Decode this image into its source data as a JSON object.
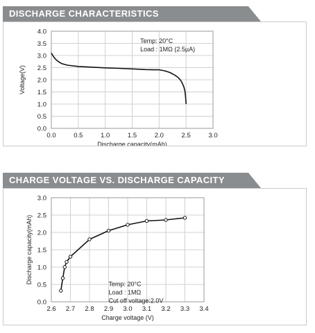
{
  "chart_data": [
    {
      "type": "line",
      "title": "DISCHARGE CHARACTERISTICS",
      "xlabel": "Discharge capacity(mAh)",
      "ylabel": "Voltage(V)",
      "xlim": [
        0.0,
        3.0
      ],
      "ylim": [
        0.0,
        4.0
      ],
      "xticks": [
        "0.0",
        "0.5",
        "1.0",
        "1.5",
        "2.0",
        "2.5",
        "3.0"
      ],
      "yticks": [
        "0.0",
        "0.5",
        "1.0",
        "1.5",
        "2.0",
        "2.5",
        "3.0",
        "3.5",
        "4.0"
      ],
      "grid": true,
      "annotation": [
        "Temp: 20°C",
        "Load : 1MΩ (2.5µA)"
      ],
      "series": [
        {
          "x": [
            0.0,
            0.05,
            0.1,
            0.15,
            0.2,
            0.3,
            0.5,
            0.75,
            1.0,
            1.25,
            1.5,
            1.75,
            1.9,
            2.0,
            2.1,
            2.2,
            2.3,
            2.35,
            2.4,
            2.43,
            2.46,
            2.48,
            2.49,
            2.5
          ],
          "y": [
            3.1,
            2.92,
            2.8,
            2.72,
            2.66,
            2.6,
            2.55,
            2.52,
            2.49,
            2.47,
            2.45,
            2.42,
            2.41,
            2.41,
            2.37,
            2.3,
            2.18,
            2.1,
            1.98,
            1.86,
            1.7,
            1.52,
            1.32,
            1.0
          ]
        }
      ]
    },
    {
      "type": "line",
      "title": "CHARGE VOLTAGE VS. DISCHARGE CAPACITY",
      "xlabel": "Charge voltage (V)",
      "ylabel": "Discharge capacity(mAh)",
      "xlim": [
        2.6,
        3.4
      ],
      "ylim": [
        0.0,
        3.0
      ],
      "xticks": [
        "2.6",
        "2.7",
        "2.8",
        "2.9",
        "3.0",
        "3.1",
        "3.2",
        "3.3",
        "3.4"
      ],
      "yticks": [
        "0.0",
        "0.5",
        "1.0",
        "1.5",
        "2.0",
        "2.5",
        "3.0"
      ],
      "grid": true,
      "annotation": [
        "Temp: 20°C",
        "Load : 1MΩ",
        "Cut off voltage:2.0V"
      ],
      "series": [
        {
          "markers": true,
          "x": [
            2.65,
            2.66,
            2.67,
            2.68,
            2.7,
            2.8,
            2.9,
            3.0,
            3.1,
            3.2,
            3.3
          ],
          "y": [
            0.32,
            0.68,
            1.0,
            1.15,
            1.3,
            1.8,
            2.05,
            2.22,
            2.33,
            2.36,
            2.42
          ]
        }
      ]
    }
  ]
}
